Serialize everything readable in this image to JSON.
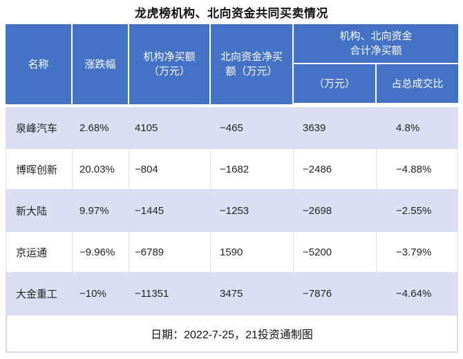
{
  "title": "龙虎榜机构、北向资金共同买卖情况",
  "colors": {
    "header_bg": "#4472C4",
    "header_text": "#ffffff",
    "shaded_row_bg": "#DBDFF1",
    "row_border": "#D9DEEC",
    "body_text": "#222222"
  },
  "table": {
    "headers": {
      "name": "名称",
      "change": "涨跌幅",
      "inst_net_buy": "机构净买额\n（万元）",
      "north_net_buy": "北向资金净买\n额（万元）",
      "combined_group": "机构、北向资金\n合计净买额",
      "combined_amount": "（万元）",
      "combined_pct": "占总成交比"
    },
    "rows": [
      {
        "name": "泉峰汽车",
        "change": "2.68%",
        "inst": "4105",
        "north": "−465",
        "total": "3639",
        "pct": "4.8%"
      },
      {
        "name": "博晖创新",
        "change": "20.03%",
        "inst": "−804",
        "north": "−1682",
        "total": "−2486",
        "pct": "−4.88%"
      },
      {
        "name": "新大陆",
        "change": "9.97%",
        "inst": "−1445",
        "north": "−1253",
        "total": "−2698",
        "pct": "−2.55%"
      },
      {
        "name": "京运通",
        "change": "−9.96%",
        "inst": "−6789",
        "north": "1590",
        "total": "−5200",
        "pct": "−3.79%"
      },
      {
        "name": "大金重工",
        "change": "−10%",
        "inst": "−11351",
        "north": "3475",
        "total": "−7876",
        "pct": "−4.64%"
      }
    ],
    "footer": "日期：2022-7-25，21投资通制图"
  },
  "chart_data": {
    "type": "table",
    "title": "龙虎榜机构、北向资金共同买卖情况",
    "columns": [
      "名称",
      "涨跌幅",
      "机构净买额（万元）",
      "北向资金净买额（万元）",
      "机构、北向资金合计净买额（万元）",
      "机构、北向资金合计净买额占总成交比"
    ],
    "rows": [
      {
        "name": "泉峰汽车",
        "change_pct": 2.68,
        "inst_net_buy": 4105,
        "north_net_buy": -465,
        "combined_net_buy": 3639,
        "pct_of_turnover": 4.8
      },
      {
        "name": "博晖创新",
        "change_pct": 20.03,
        "inst_net_buy": -804,
        "north_net_buy": -1682,
        "combined_net_buy": -2486,
        "pct_of_turnover": -4.88
      },
      {
        "name": "新大陆",
        "change_pct": 9.97,
        "inst_net_buy": -1445,
        "north_net_buy": -1253,
        "combined_net_buy": -2698,
        "pct_of_turnover": -2.55
      },
      {
        "name": "京运通",
        "change_pct": -9.96,
        "inst_net_buy": -6789,
        "north_net_buy": 1590,
        "combined_net_buy": -5200,
        "pct_of_turnover": -3.79
      },
      {
        "name": "大金重工",
        "change_pct": -10,
        "inst_net_buy": -11351,
        "north_net_buy": 3475,
        "combined_net_buy": -7876,
        "pct_of_turnover": -4.64
      }
    ],
    "source_note": "日期：2022-7-25，21投资通制图"
  }
}
